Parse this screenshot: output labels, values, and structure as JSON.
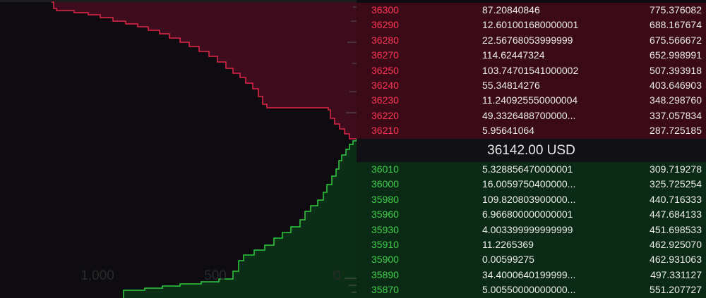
{
  "depth_axis": {
    "labels": [
      "1,000",
      "500",
      "0"
    ]
  },
  "asks": [
    {
      "price": "36300",
      "amount": "87.20840846",
      "total": "775.376082"
    },
    {
      "price": "36290",
      "amount": "12.601001680000001",
      "total": "688.167674"
    },
    {
      "price": "36280",
      "amount": "22.56768053999999",
      "total": "675.566672"
    },
    {
      "price": "36270",
      "amount": "114.62447324",
      "total": "652.998991"
    },
    {
      "price": "36250",
      "amount": "103.74701541000002",
      "total": "507.393918"
    },
    {
      "price": "36240",
      "amount": "55.34814276",
      "total": "403.646903"
    },
    {
      "price": "36230",
      "amount": "11.240925550000004",
      "total": "348.298760"
    },
    {
      "price": "36220",
      "amount": "49.3326488700000...",
      "total": "337.057834"
    },
    {
      "price": "36210",
      "amount": "5.95641064",
      "total": "287.725185"
    }
  ],
  "mid_price": "36142.00 USD",
  "bids": [
    {
      "price": "36010",
      "amount": "5.328856470000001",
      "total": "309.719278"
    },
    {
      "price": "36000",
      "amount": "16.0059750400000...",
      "total": "325.725254"
    },
    {
      "price": "35980",
      "amount": "109.820803900000...",
      "total": "440.716333"
    },
    {
      "price": "35960",
      "amount": "6.966800000000001",
      "total": "447.684133"
    },
    {
      "price": "35930",
      "amount": "4.003399999999999",
      "total": "451.698533"
    },
    {
      "price": "35910",
      "amount": "11.2265369",
      "total": "462.925070"
    },
    {
      "price": "35900",
      "amount": "0.00599275",
      "total": "462.931063"
    },
    {
      "price": "35890",
      "amount": "34.4000640199999...",
      "total": "497.331127"
    },
    {
      "price": "35870",
      "amount": "5.00550000000000...",
      "total": "551.207727"
    }
  ]
}
